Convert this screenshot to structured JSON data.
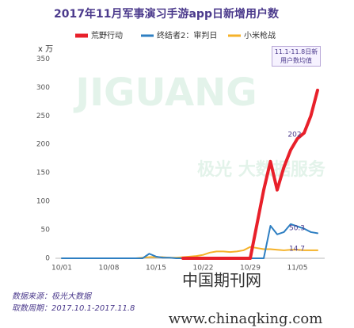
{
  "chart_data": {
    "type": "line",
    "title": "2017年11月军事演习手游app日新增用户数",
    "y_label": "x 万",
    "categories": [
      "10/01",
      null,
      null,
      null,
      null,
      null,
      null,
      "10/08",
      null,
      null,
      null,
      null,
      null,
      null,
      "10/15",
      null,
      null,
      null,
      null,
      null,
      null,
      "10/22",
      null,
      null,
      null,
      null,
      null,
      null,
      "10/29",
      null,
      null,
      null,
      null,
      null,
      null,
      "11/05",
      null,
      null,
      null
    ],
    "series": [
      {
        "name": "荒野行动",
        "color": "#e8202a",
        "width": 4,
        "mean": 202,
        "values": [
          null,
          null,
          null,
          null,
          null,
          null,
          null,
          null,
          null,
          null,
          null,
          null,
          null,
          null,
          null,
          null,
          null,
          null,
          0,
          0,
          0,
          0,
          0,
          0,
          0,
          0,
          0,
          0,
          0,
          60,
          120,
          170,
          120,
          160,
          190,
          210,
          220,
          250,
          295
        ]
      },
      {
        "name": "终结者2：审判日",
        "color": "#2e7fc2",
        "width": 2,
        "mean": 50.3,
        "values": [
          0,
          0,
          0,
          0,
          0,
          0,
          0,
          0,
          0,
          0,
          0,
          0,
          0,
          8,
          3,
          1,
          1,
          0,
          0,
          0,
          0,
          0,
          0,
          0,
          0,
          0,
          0,
          0,
          0,
          0,
          0,
          57,
          42,
          46,
          60,
          56,
          52,
          46,
          44
        ]
      },
      {
        "name": "小米枪战",
        "color": "#f5b229",
        "width": 2,
        "mean": 14.7,
        "values": [
          0,
          0,
          0,
          0,
          0,
          0,
          0,
          0,
          0,
          0,
          0,
          0,
          1,
          2,
          2,
          2,
          1,
          1,
          2,
          3,
          4,
          6,
          10,
          12,
          12,
          11,
          12,
          14,
          20,
          18,
          16,
          16,
          15,
          14,
          15,
          15,
          14,
          14,
          14
        ]
      }
    ],
    "ylim": [
      0,
      370
    ],
    "yticks": [
      0,
      50,
      100,
      150,
      200,
      250,
      300,
      350
    ],
    "grid": false,
    "annotation": "11.1-11.8日新用户数均值",
    "watermarks": [
      "JIGUANG",
      "极光 大数据服务",
      "中国期刊网",
      "www.chinaqking.com"
    ],
    "source": "数据来源：极光大数据",
    "period": "取数周期：2017.10.1-2017.11.8"
  }
}
